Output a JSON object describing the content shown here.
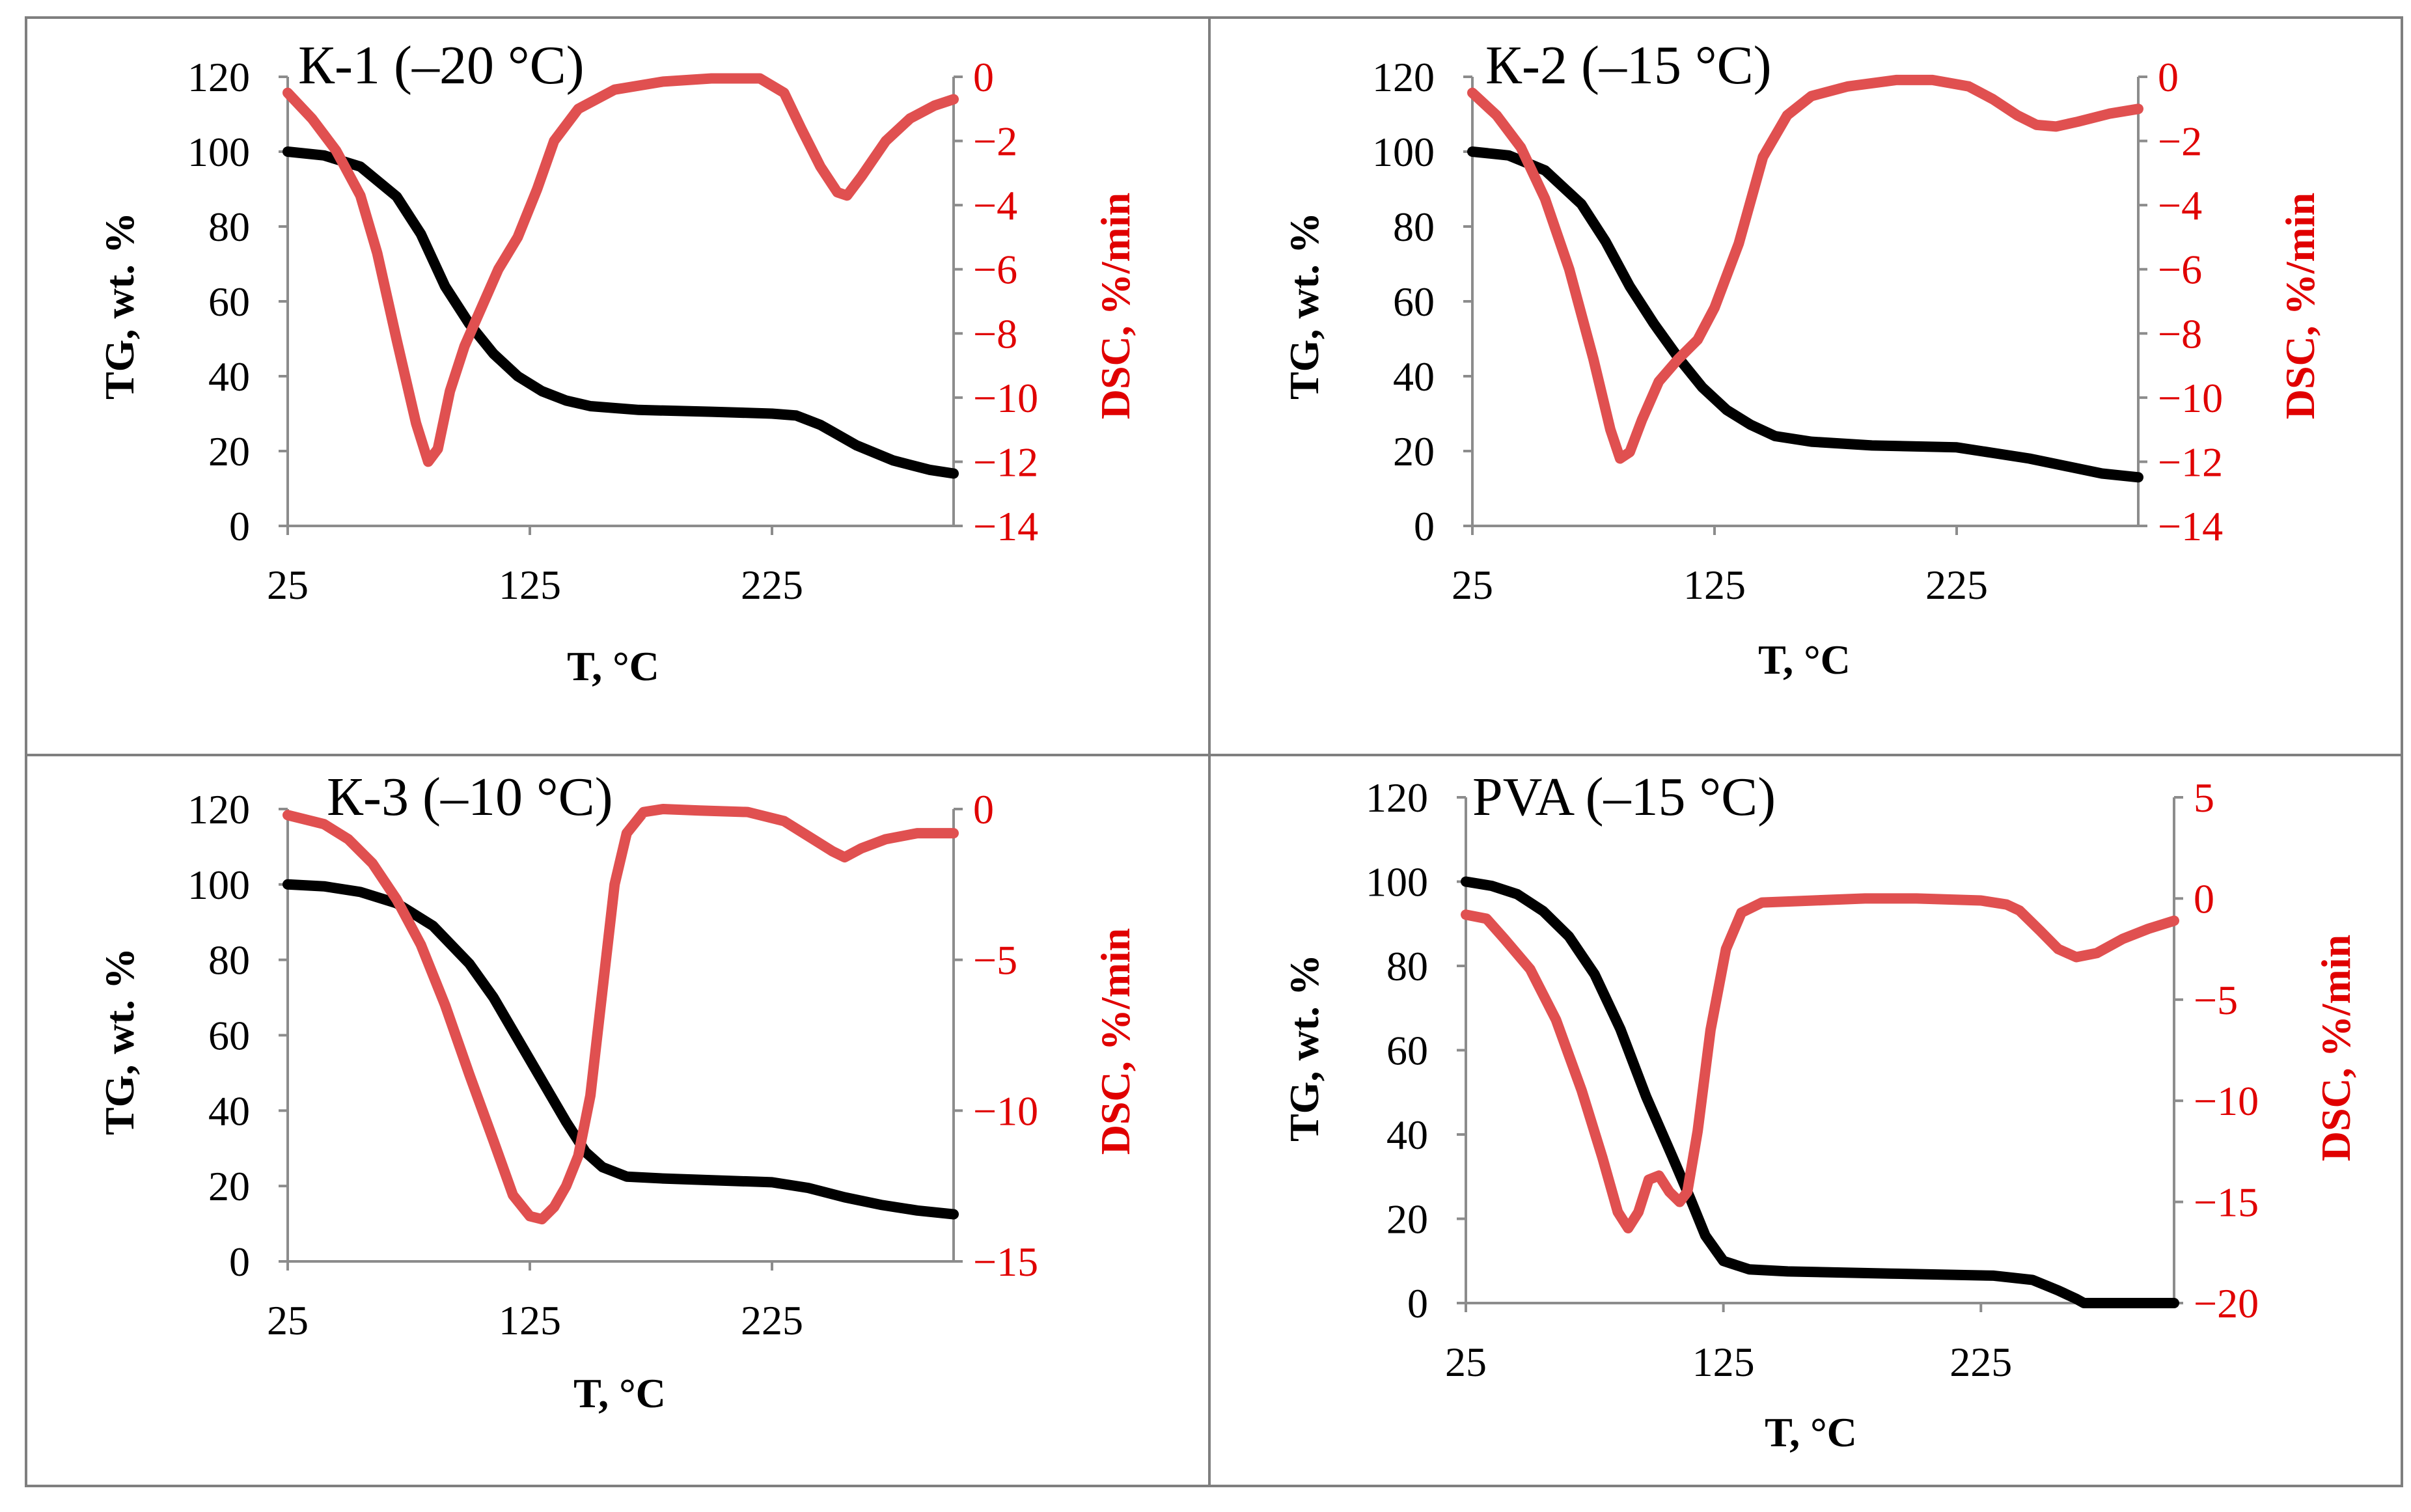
{
  "colors": {
    "tg_line": "#000000",
    "dsc_line": "#e05050",
    "dsc_axis": "#e00000",
    "axis": "#8c8c8c",
    "border": "#7f7f7f",
    "background": "#ffffff"
  },
  "chart_data": [
    {
      "type": "line",
      "title": "К-1 (–20 °C)",
      "xlabel": "T, °C",
      "ylabel": "TG, wt. %",
      "y2label": "DSC, %/min",
      "xlim": [
        25,
        300
      ],
      "xticks": [
        25,
        125,
        225
      ],
      "ylim": [
        0,
        120
      ],
      "yticks": [
        0,
        20,
        40,
        60,
        80,
        100,
        120
      ],
      "y2lim": [
        -14,
        0
      ],
      "y2ticks": [
        0,
        -2,
        -4,
        -6,
        -8,
        -10,
        -12,
        -14
      ],
      "y2ticklabels": [
        "0",
        "−2",
        "−4",
        "−6",
        "−8",
        "−10",
        "−12",
        "−14"
      ],
      "grid": false,
      "series": [
        {
          "name": "TG",
          "axis": "left",
          "points": [
            [
              25,
              100
            ],
            [
              40,
              99
            ],
            [
              55,
              96
            ],
            [
              70,
              88
            ],
            [
              80,
              78
            ],
            [
              90,
              64
            ],
            [
              100,
              54
            ],
            [
              110,
              46
            ],
            [
              120,
              40
            ],
            [
              130,
              36
            ],
            [
              140,
              33.5
            ],
            [
              150,
              32
            ],
            [
              170,
              31
            ],
            [
              200,
              30.5
            ],
            [
              225,
              30
            ],
            [
              235,
              29.5
            ],
            [
              245,
              27
            ],
            [
              260,
              21.5
            ],
            [
              275,
              17.5
            ],
            [
              290,
              15
            ],
            [
              300,
              14
            ]
          ]
        },
        {
          "name": "DSC",
          "axis": "right",
          "points": [
            [
              25,
              -0.5
            ],
            [
              35,
              -1.3
            ],
            [
              45,
              -2.3
            ],
            [
              55,
              -3.7
            ],
            [
              62,
              -5.5
            ],
            [
              70,
              -8.2
            ],
            [
              78,
              -10.8
            ],
            [
              83,
              -12.0
            ],
            [
              87,
              -11.6
            ],
            [
              92,
              -9.8
            ],
            [
              98,
              -8.4
            ],
            [
              105,
              -7.2
            ],
            [
              112,
              -6.0
            ],
            [
              120,
              -5.0
            ],
            [
              128,
              -3.5
            ],
            [
              135,
              -2.0
            ],
            [
              145,
              -1.0
            ],
            [
              160,
              -0.4
            ],
            [
              180,
              -0.15
            ],
            [
              200,
              -0.05
            ],
            [
              220,
              -0.05
            ],
            [
              230,
              -0.5
            ],
            [
              237,
              -1.6
            ],
            [
              245,
              -2.8
            ],
            [
              252,
              -3.6
            ],
            [
              256,
              -3.7
            ],
            [
              262,
              -3.1
            ],
            [
              272,
              -2.0
            ],
            [
              282,
              -1.3
            ],
            [
              292,
              -0.9
            ],
            [
              300,
              -0.7
            ]
          ]
        }
      ]
    },
    {
      "type": "line",
      "title": "К-2 (–15 °C)",
      "xlabel": "T, °C",
      "ylabel": "TG, wt. %",
      "y2label": "DSC, %/min",
      "xlim": [
        25,
        300
      ],
      "xticks": [
        25,
        125,
        225
      ],
      "ylim": [
        0,
        120
      ],
      "yticks": [
        0,
        20,
        40,
        60,
        80,
        100,
        120
      ],
      "y2lim": [
        -14,
        0
      ],
      "y2ticks": [
        0,
        -2,
        -4,
        -6,
        -8,
        -10,
        -12,
        -14
      ],
      "y2ticklabels": [
        "0",
        "−2",
        "−4",
        "−6",
        "−8",
        "−10",
        "−12",
        "−14"
      ],
      "grid": false,
      "series": [
        {
          "name": "TG",
          "axis": "left",
          "points": [
            [
              25,
              100
            ],
            [
              40,
              99
            ],
            [
              55,
              95
            ],
            [
              70,
              86
            ],
            [
              80,
              76
            ],
            [
              90,
              64
            ],
            [
              100,
              54
            ],
            [
              110,
              45
            ],
            [
              120,
              37
            ],
            [
              130,
              31
            ],
            [
              140,
              27
            ],
            [
              150,
              24
            ],
            [
              165,
              22.5
            ],
            [
              190,
              21.5
            ],
            [
              225,
              21
            ],
            [
              240,
              19.5
            ],
            [
              255,
              18
            ],
            [
              270,
              16
            ],
            [
              285,
              14
            ],
            [
              300,
              13
            ]
          ]
        },
        {
          "name": "DSC",
          "axis": "right",
          "points": [
            [
              25,
              -0.5
            ],
            [
              35,
              -1.2
            ],
            [
              45,
              -2.2
            ],
            [
              55,
              -3.8
            ],
            [
              65,
              -6.0
            ],
            [
              75,
              -8.8
            ],
            [
              82,
              -11.0
            ],
            [
              86,
              -11.9
            ],
            [
              90,
              -11.7
            ],
            [
              95,
              -10.7
            ],
            [
              102,
              -9.5
            ],
            [
              110,
              -8.8
            ],
            [
              118,
              -8.2
            ],
            [
              125,
              -7.2
            ],
            [
              135,
              -5.2
            ],
            [
              145,
              -2.5
            ],
            [
              155,
              -1.2
            ],
            [
              165,
              -0.6
            ],
            [
              180,
              -0.3
            ],
            [
              200,
              -0.1
            ],
            [
              215,
              -0.1
            ],
            [
              230,
              -0.3
            ],
            [
              240,
              -0.7
            ],
            [
              250,
              -1.2
            ],
            [
              258,
              -1.5
            ],
            [
              266,
              -1.55
            ],
            [
              275,
              -1.4
            ],
            [
              288,
              -1.15
            ],
            [
              300,
              -1.0
            ]
          ]
        }
      ]
    },
    {
      "type": "line",
      "title": "К-3 (–10 °C)",
      "xlabel": "T, °C",
      "ylabel": "TG, wt. %",
      "y2label": "DSC, %/min",
      "xlim": [
        25,
        300
      ],
      "xticks": [
        25,
        125,
        225
      ],
      "ylim": [
        0,
        120
      ],
      "yticks": [
        0,
        20,
        40,
        60,
        80,
        100,
        120
      ],
      "y2lim": [
        -15,
        0
      ],
      "y2ticks": [
        0,
        -5,
        -10,
        -15
      ],
      "y2ticklabels": [
        "0",
        "−5",
        "−10",
        "−15"
      ],
      "grid": false,
      "series": [
        {
          "name": "TG",
          "axis": "left",
          "points": [
            [
              25,
              100
            ],
            [
              40,
              99.5
            ],
            [
              55,
              98
            ],
            [
              70,
              95
            ],
            [
              85,
              89
            ],
            [
              100,
              79
            ],
            [
              110,
              70
            ],
            [
              120,
              59
            ],
            [
              130,
              48
            ],
            [
              140,
              37
            ],
            [
              148,
              29
            ],
            [
              155,
              25
            ],
            [
              165,
              22.5
            ],
            [
              180,
              22
            ],
            [
              225,
              21
            ],
            [
              240,
              19.5
            ],
            [
              255,
              17
            ],
            [
              270,
              15
            ],
            [
              285,
              13.5
            ],
            [
              300,
              12.5
            ]
          ]
        },
        {
          "name": "DSC",
          "axis": "right",
          "points": [
            [
              25,
              -0.2
            ],
            [
              40,
              -0.5
            ],
            [
              50,
              -1.0
            ],
            [
              60,
              -1.8
            ],
            [
              70,
              -3.0
            ],
            [
              80,
              -4.5
            ],
            [
              90,
              -6.5
            ],
            [
              100,
              -8.8
            ],
            [
              110,
              -11.0
            ],
            [
              118,
              -12.8
            ],
            [
              125,
              -13.5
            ],
            [
              130,
              -13.6
            ],
            [
              135,
              -13.2
            ],
            [
              140,
              -12.5
            ],
            [
              145,
              -11.5
            ],
            [
              150,
              -9.5
            ],
            [
              155,
              -6.0
            ],
            [
              160,
              -2.5
            ],
            [
              165,
              -0.8
            ],
            [
              172,
              -0.1
            ],
            [
              180,
              0.0
            ],
            [
              195,
              -0.05
            ],
            [
              215,
              -0.1
            ],
            [
              230,
              -0.4
            ],
            [
              240,
              -0.9
            ],
            [
              250,
              -1.4
            ],
            [
              255,
              -1.6
            ],
            [
              262,
              -1.3
            ],
            [
              272,
              -1.0
            ],
            [
              285,
              -0.8
            ],
            [
              300,
              -0.8
            ]
          ]
        }
      ]
    },
    {
      "type": "line",
      "title": "PVA (–15 °C)",
      "xlabel": "T, °C",
      "ylabel": "TG, wt. %",
      "y2label": "DSC, %/min",
      "xlim": [
        25,
        300
      ],
      "xticks": [
        25,
        125,
        225
      ],
      "ylim": [
        0,
        120
      ],
      "yticks": [
        0,
        20,
        40,
        60,
        80,
        100,
        120
      ],
      "y2lim": [
        -20,
        5
      ],
      "y2ticks": [
        5,
        0,
        -5,
        -10,
        -15,
        -20
      ],
      "y2ticklabels": [
        "5",
        "0",
        "−5",
        "−10",
        "−15",
        "−20"
      ],
      "grid": false,
      "series": [
        {
          "name": "TG",
          "axis": "left",
          "points": [
            [
              25,
              100
            ],
            [
              35,
              99
            ],
            [
              45,
              97
            ],
            [
              55,
              93
            ],
            [
              65,
              87
            ],
            [
              75,
              78
            ],
            [
              85,
              65
            ],
            [
              95,
              49
            ],
            [
              105,
              35
            ],
            [
              112,
              25
            ],
            [
              118,
              16
            ],
            [
              125,
              10
            ],
            [
              135,
              8
            ],
            [
              150,
              7.5
            ],
            [
              190,
              7
            ],
            [
              230,
              6.5
            ],
            [
              245,
              5.5
            ],
            [
              255,
              3
            ],
            [
              262,
              1
            ],
            [
              265,
              0
            ],
            [
              300,
              0
            ]
          ]
        },
        {
          "name": "DSC",
          "axis": "right",
          "points": [
            [
              25,
              -0.8
            ],
            [
              33,
              -1.0
            ],
            [
              40,
              -2.0
            ],
            [
              50,
              -3.5
            ],
            [
              60,
              -6.0
            ],
            [
              70,
              -9.5
            ],
            [
              78,
              -12.8
            ],
            [
              84,
              -15.5
            ],
            [
              88,
              -16.3
            ],
            [
              92,
              -15.5
            ],
            [
              96,
              -13.9
            ],
            [
              100,
              -13.7
            ],
            [
              104,
              -14.5
            ],
            [
              108,
              -15.0
            ],
            [
              111,
              -14.5
            ],
            [
              115,
              -11.5
            ],
            [
              120,
              -6.5
            ],
            [
              126,
              -2.5
            ],
            [
              132,
              -0.7
            ],
            [
              140,
              -0.2
            ],
            [
              160,
              -0.1
            ],
            [
              180,
              0.0
            ],
            [
              200,
              0.0
            ],
            [
              225,
              -0.1
            ],
            [
              235,
              -0.3
            ],
            [
              240,
              -0.6
            ],
            [
              248,
              -1.6
            ],
            [
              255,
              -2.5
            ],
            [
              262,
              -2.9
            ],
            [
              270,
              -2.7
            ],
            [
              280,
              -2.0
            ],
            [
              290,
              -1.5
            ],
            [
              300,
              -1.1
            ]
          ]
        }
      ]
    }
  ]
}
